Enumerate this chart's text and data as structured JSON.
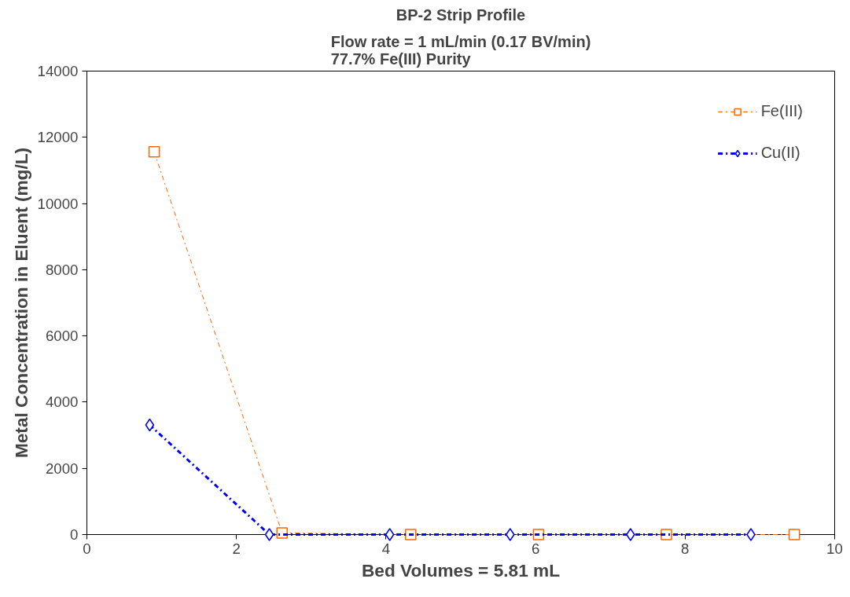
{
  "chart_data": {
    "type": "line",
    "title": "BP-2 Strip Profile",
    "subtitle": "Flow rate = 1 mL/min (0.17 BV/min)\n77.7% Fe(III) Purity",
    "xlabel": "Bed Volumes = 5.81 mL",
    "ylabel": "Metal Concentration in Eluent (mg/L)",
    "xlim": [
      0,
      10
    ],
    "xticks": [
      0,
      2,
      4,
      6,
      8,
      10
    ],
    "ylim": [
      0,
      14000
    ],
    "yticks": [
      0,
      2000,
      4000,
      6000,
      8000,
      10000,
      12000,
      14000
    ],
    "grid": false,
    "legend": "top right",
    "series": [
      {
        "name": "Fe(III)",
        "color": "#ff6600",
        "marker": "square",
        "line_style": "dashdot",
        "x": [
          0.9,
          2.61,
          4.33,
          6.04,
          7.75,
          9.46
        ],
        "values": [
          11560,
          50,
          0,
          0,
          0,
          0
        ]
      },
      {
        "name": "Cu(II)",
        "color": "#0000ff",
        "marker": "diamond",
        "line_style": "dashdot",
        "x": [
          0.84,
          2.44,
          4.05,
          5.66,
          7.27,
          8.88
        ],
        "values": [
          3310,
          0,
          0,
          0,
          0,
          0
        ]
      }
    ]
  }
}
